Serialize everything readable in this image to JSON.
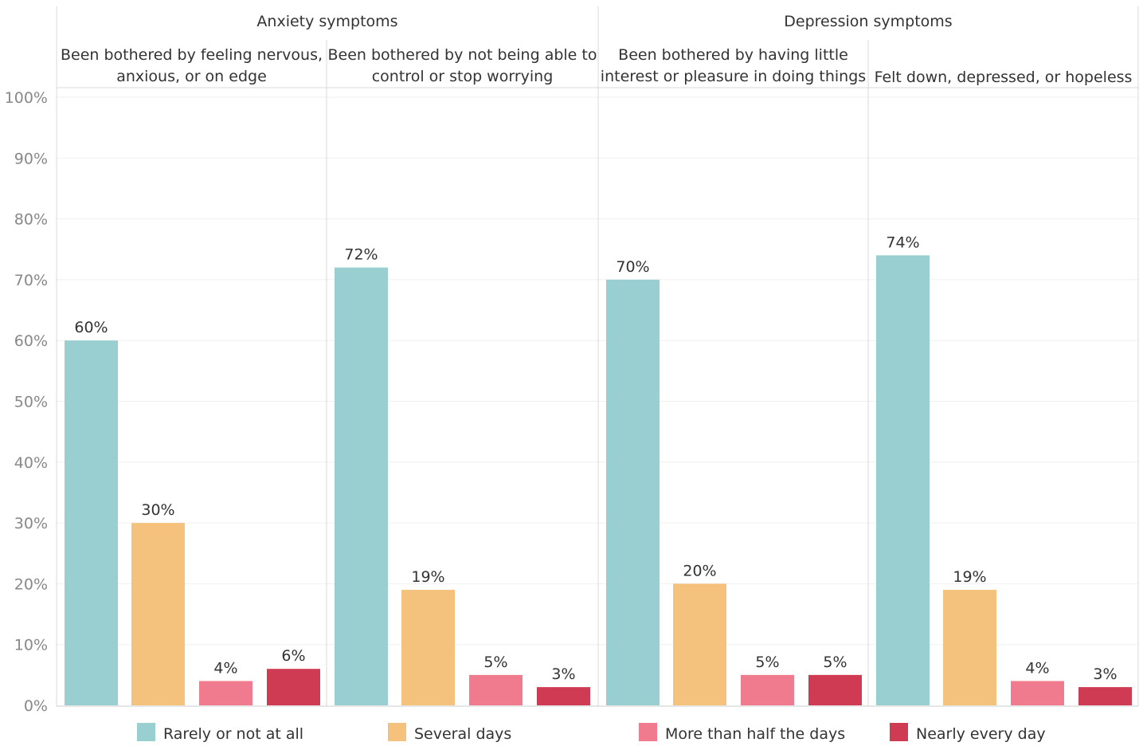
{
  "chart_data": {
    "type": "bar",
    "ylim": [
      0,
      100
    ],
    "y_ticks": [
      "0%",
      "10%",
      "20%",
      "30%",
      "40%",
      "50%",
      "60%",
      "70%",
      "80%",
      "90%",
      "100%"
    ],
    "groups": [
      {
        "title": "Anxiety symptoms",
        "panels": [
          {
            "title_lines": [
              "Been bothered by feeling nervous,",
              "anxious, or on edge"
            ],
            "values": [
              60,
              30,
              4,
              6
            ],
            "labels": [
              "60%",
              "30%",
              "4%",
              "6%"
            ]
          },
          {
            "title_lines": [
              "Been bothered by not being able to",
              "control or stop worrying"
            ],
            "values": [
              72,
              19,
              5,
              3
            ],
            "labels": [
              "72%",
              "19%",
              "5%",
              "3%"
            ]
          }
        ]
      },
      {
        "title": "Depression symptoms",
        "panels": [
          {
            "title_lines": [
              "Been bothered by having little",
              "interest or pleasure in doing things"
            ],
            "values": [
              70,
              20,
              5,
              5
            ],
            "labels": [
              "70%",
              "20%",
              "5%",
              "5%"
            ]
          },
          {
            "title_lines": [
              "Felt down, depressed, or hopeless"
            ],
            "values": [
              74,
              19,
              4,
              3
            ],
            "labels": [
              "74%",
              "19%",
              "4%",
              "3%"
            ]
          }
        ]
      }
    ],
    "series": [
      {
        "name": "Rarely or not at all",
        "color": "#99cfd1"
      },
      {
        "name": "Several days",
        "color": "#f5c27e"
      },
      {
        "name": "More than half the days",
        "color": "#f07a8e"
      },
      {
        "name": "Nearly every day",
        "color": "#cf3b53"
      }
    ],
    "legend_position": "bottom",
    "grid": true
  }
}
